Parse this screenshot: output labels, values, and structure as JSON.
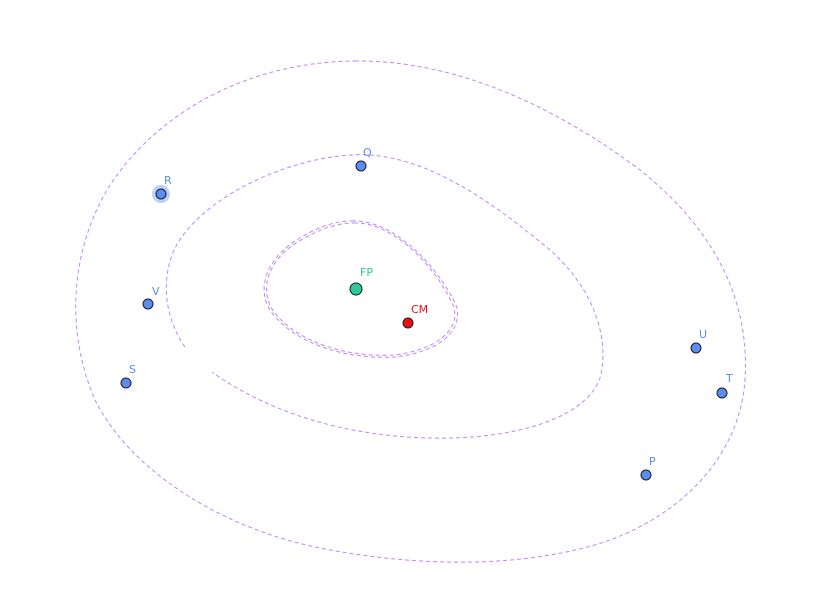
{
  "colors": {
    "contour": "#c084fc",
    "point_fill": "#5b8def",
    "point_label": "#5b8def",
    "point_halo": "#bcd0f7",
    "fp_fill": "#2ec99a",
    "fp_label": "#2ec99a",
    "cm_fill": "#ee1111",
    "cm_label": "#ee1111",
    "outline": "#1a1a2e"
  },
  "points": {
    "p": {
      "label": "P"
    },
    "q": {
      "label": "Q"
    },
    "r": {
      "label": "R"
    },
    "s": {
      "label": "S"
    },
    "t": {
      "label": "T"
    },
    "u": {
      "label": "U"
    },
    "v": {
      "label": "V"
    },
    "fp": {
      "label": "FP"
    },
    "cm": {
      "label": "CM"
    }
  }
}
